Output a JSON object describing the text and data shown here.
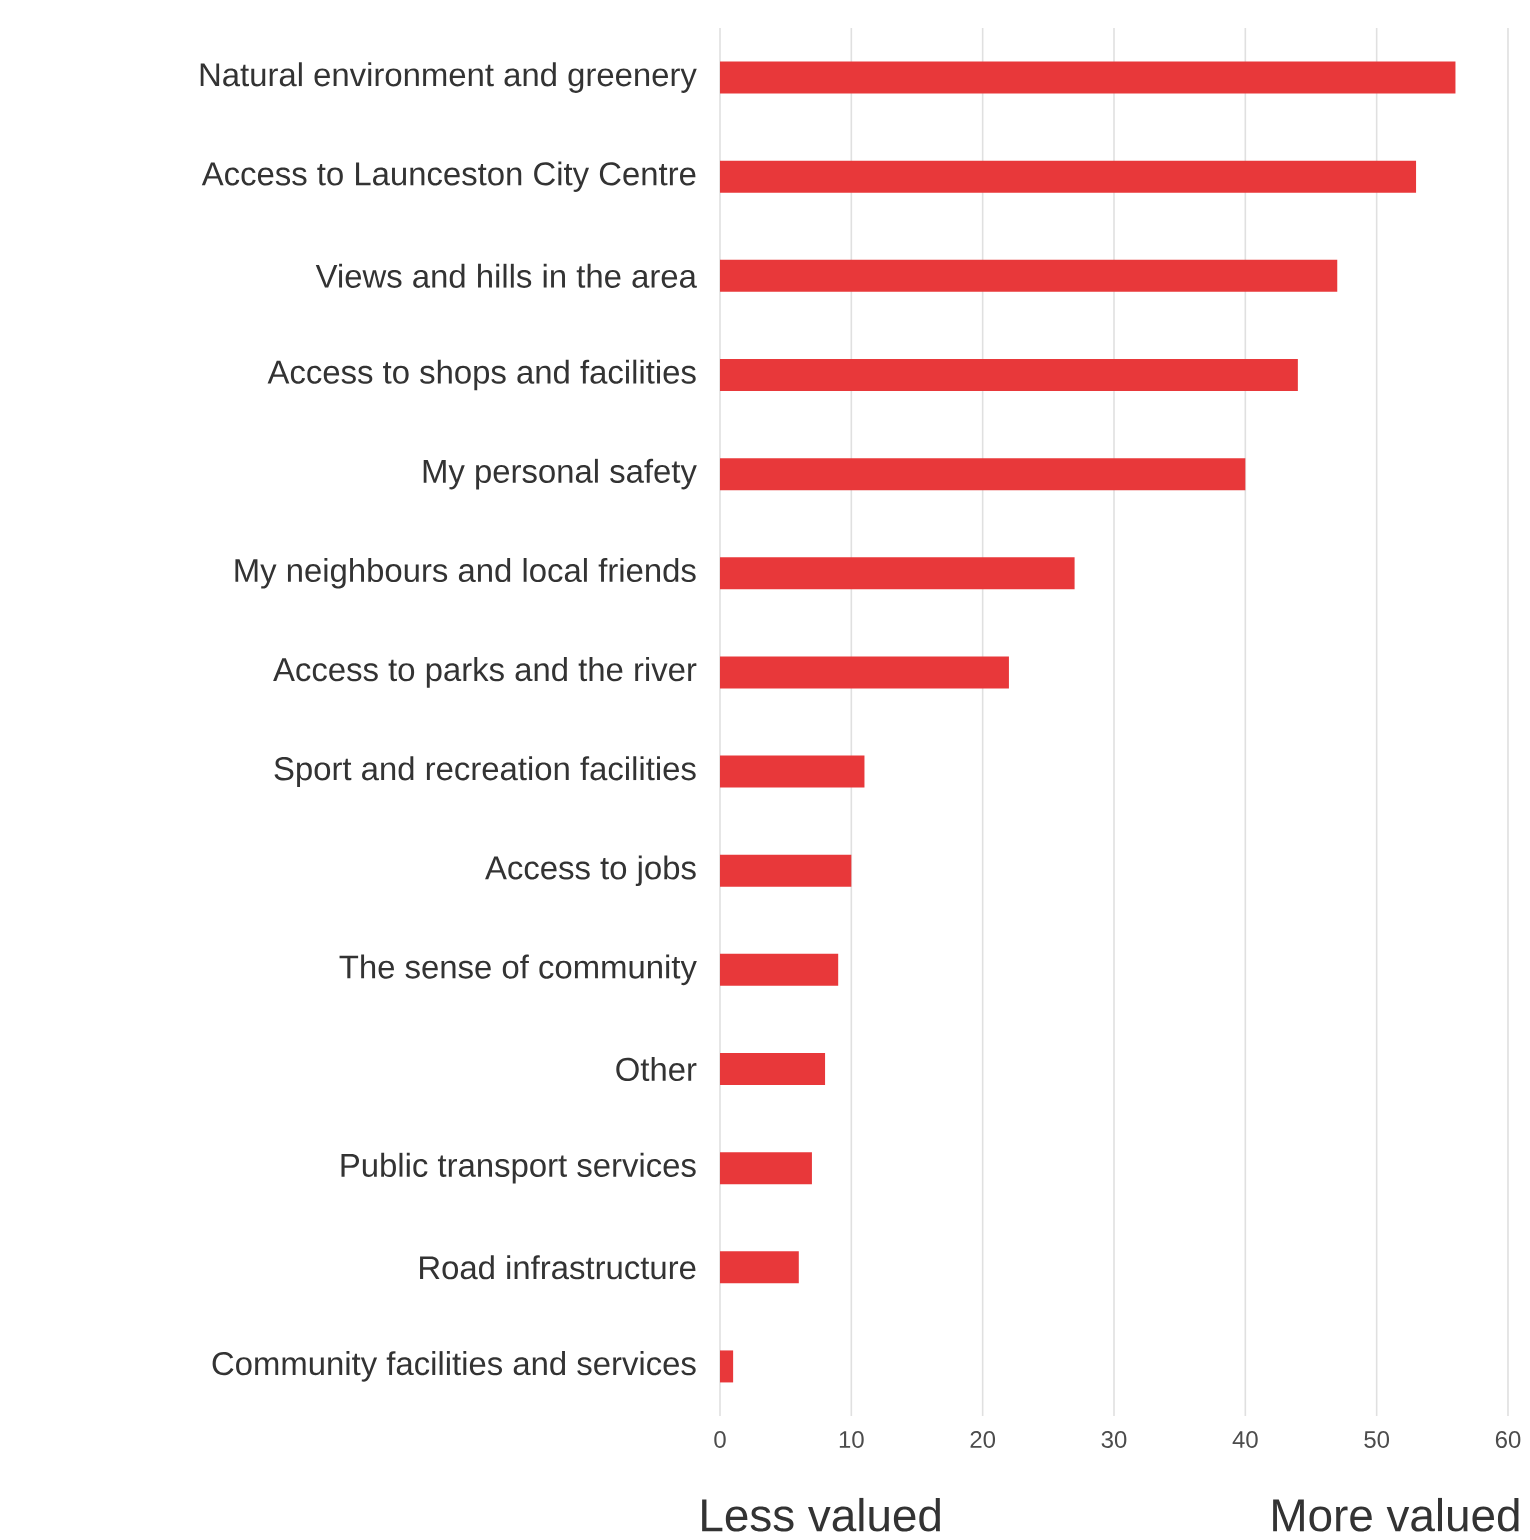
{
  "chart_data": {
    "type": "bar",
    "orientation": "horizontal",
    "categories": [
      "Natural environment and greenery",
      "Access to Launceston City Centre",
      "Views and hills in the area",
      "Access to shops and facilities",
      "My personal safety",
      "My neighbours and local friends",
      "Access to parks and the river",
      "Sport and recreation facilities",
      "Access to jobs",
      "The sense of community",
      "Other",
      "Public transport services",
      "Road infrastructure",
      "Community facilities and services"
    ],
    "values": [
      56,
      53,
      47,
      44,
      40,
      27,
      22,
      11,
      10,
      9,
      8,
      7,
      6,
      1
    ],
    "color": "#e8383a",
    "xlim": [
      0,
      60
    ],
    "xticks": [
      0,
      10,
      20,
      30,
      40,
      50,
      60
    ],
    "grid": "x",
    "annotations": [
      "Less valued",
      "More valued"
    ]
  }
}
